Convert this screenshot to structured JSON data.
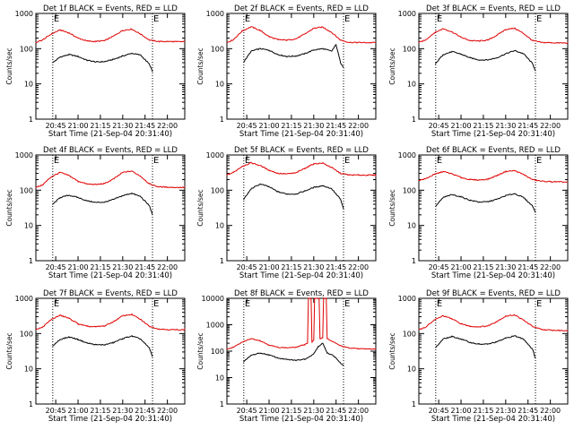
{
  "figure": {
    "background": "#ffffff",
    "axis_color": "#000000",
    "events_color": "#000000",
    "lld_color": "#e00000"
  },
  "chart_data": [
    {
      "type": "line",
      "title": "Det 1f BLACK = Events, RED = LLD",
      "ylabel": "Counts/sec",
      "xlabel": "Start Time (21-Sep-04 20:31:40)",
      "yscale": "log",
      "ylim": [
        1,
        1000
      ],
      "yticks": [
        1,
        10,
        100,
        1000
      ],
      "xlim": [
        20.5278,
        22.1944
      ],
      "xticks": [
        "20:45",
        "21:00",
        "21:15",
        "21:30",
        "21:45",
        "22:00"
      ],
      "markers": [
        {
          "label": "E",
          "x": 20.7167
        },
        {
          "label": "E",
          "x": 21.8333
        }
      ],
      "grid": false,
      "legend": "none",
      "series": [
        {
          "color": "#000000",
          "x": [
            20.7167,
            20.8,
            20.9,
            21.0,
            21.1,
            21.2,
            21.3,
            21.4,
            21.5,
            21.6,
            21.7,
            21.8,
            21.8333
          ],
          "values": [
            40,
            58,
            68,
            60,
            47,
            42,
            43,
            50,
            62,
            74,
            66,
            36,
            22
          ]
        },
        {
          "color": "#e00000",
          "x": [
            20.5278,
            20.6,
            20.7,
            20.8,
            20.9,
            21.0,
            21.1,
            21.2,
            21.3,
            21.4,
            21.5,
            21.6,
            21.7,
            21.8,
            21.9,
            22.0,
            22.1,
            22.1944
          ],
          "values": [
            150,
            175,
            260,
            340,
            280,
            200,
            165,
            160,
            170,
            230,
            330,
            360,
            260,
            175,
            160,
            160,
            158,
            158
          ]
        }
      ]
    },
    {
      "type": "line",
      "title": "Det 2f BLACK = Events, RED = LLD",
      "ylabel": "Counts/sec",
      "xlabel": "Start Time (21-Sep-04 20:31:40)",
      "yscale": "log",
      "ylim": [
        1,
        1000
      ],
      "yticks": [
        1,
        10,
        100,
        1000
      ],
      "xlim": [
        20.5278,
        22.1944
      ],
      "xticks": [
        "20:45",
        "21:00",
        "21:15",
        "21:30",
        "21:45",
        "22:00"
      ],
      "markers": [
        {
          "label": "E",
          "x": 20.7167
        },
        {
          "label": "E",
          "x": 21.8333
        }
      ],
      "grid": false,
      "legend": "none",
      "series": [
        {
          "color": "#000000",
          "x": [
            20.7167,
            20.8,
            20.9,
            21.0,
            21.1,
            21.2,
            21.3,
            21.4,
            21.5,
            21.6,
            21.7,
            21.75,
            21.8,
            21.8333
          ],
          "values": [
            42,
            85,
            100,
            90,
            68,
            60,
            62,
            72,
            92,
            100,
            85,
            130,
            40,
            30
          ]
        },
        {
          "color": "#e00000",
          "x": [
            20.5278,
            20.6,
            20.7,
            20.8,
            20.9,
            21.0,
            21.1,
            21.2,
            21.3,
            21.4,
            21.5,
            21.6,
            21.7,
            21.8,
            21.9,
            22.0,
            22.1,
            22.1944
          ],
          "values": [
            150,
            180,
            320,
            420,
            330,
            220,
            180,
            175,
            190,
            260,
            380,
            410,
            290,
            175,
            150,
            150,
            148,
            150
          ]
        }
      ]
    },
    {
      "type": "line",
      "title": "Det 3f BLACK = Events, RED = LLD",
      "ylabel": "Counts/sec",
      "xlabel": "Start Time (21-Sep-04 20:31:40)",
      "yscale": "log",
      "ylim": [
        1,
        1000
      ],
      "yticks": [
        1,
        10,
        100,
        1000
      ],
      "xlim": [
        20.5278,
        22.1944
      ],
      "xticks": [
        "20:45",
        "21:00",
        "21:15",
        "21:30",
        "21:45",
        "22:00"
      ],
      "markers": [
        {
          "label": "E",
          "x": 20.7167
        },
        {
          "label": "E",
          "x": 21.8333
        }
      ],
      "grid": false,
      "legend": "none",
      "series": [
        {
          "color": "#000000",
          "x": [
            20.7167,
            20.8,
            20.9,
            21.0,
            21.1,
            21.2,
            21.3,
            21.4,
            21.5,
            21.6,
            21.7,
            21.8,
            21.8333
          ],
          "values": [
            38,
            68,
            82,
            70,
            55,
            48,
            48,
            55,
            72,
            88,
            72,
            38,
            24
          ]
        },
        {
          "color": "#e00000",
          "x": [
            20.5278,
            20.6,
            20.7,
            20.8,
            20.9,
            21.0,
            21.1,
            21.2,
            21.3,
            21.4,
            21.5,
            21.6,
            21.7,
            21.8,
            21.9,
            22.0,
            22.1,
            22.1944
          ],
          "values": [
            150,
            175,
            280,
            370,
            300,
            210,
            170,
            165,
            175,
            240,
            350,
            380,
            270,
            170,
            150,
            148,
            145,
            145
          ]
        }
      ]
    },
    {
      "type": "line",
      "title": "Det 4f BLACK = Events, RED = LLD",
      "ylabel": "Counts/sec",
      "xlabel": "Start Time (21-Sep-04 20:31:40)",
      "yscale": "log",
      "ylim": [
        1,
        1000
      ],
      "yticks": [
        1,
        10,
        100,
        1000
      ],
      "xlim": [
        20.5278,
        22.1944
      ],
      "xticks": [
        "20:45",
        "21:00",
        "21:15",
        "21:30",
        "21:45",
        "22:00"
      ],
      "markers": [
        {
          "label": "E",
          "x": 20.7167
        },
        {
          "label": "E",
          "x": 21.8333
        }
      ],
      "grid": false,
      "legend": "none",
      "series": [
        {
          "color": "#000000",
          "x": [
            20.7167,
            20.8,
            20.9,
            21.0,
            21.1,
            21.2,
            21.3,
            21.4,
            21.5,
            21.6,
            21.7,
            21.8,
            21.8333
          ],
          "values": [
            40,
            62,
            72,
            62,
            50,
            45,
            46,
            55,
            70,
            82,
            66,
            36,
            20
          ]
        },
        {
          "color": "#e00000",
          "x": [
            20.5278,
            20.6,
            20.7,
            20.8,
            20.9,
            21.0,
            21.1,
            21.2,
            21.3,
            21.4,
            21.5,
            21.6,
            21.7,
            21.8,
            21.9,
            22.0,
            22.1,
            22.1944
          ],
          "values": [
            120,
            140,
            240,
            320,
            260,
            180,
            150,
            145,
            155,
            210,
            320,
            350,
            250,
            150,
            125,
            122,
            120,
            120
          ]
        }
      ]
    },
    {
      "type": "line",
      "title": "Det 5f BLACK = Events, RED = LLD",
      "ylabel": "Counts/sec",
      "xlabel": "Start Time (21-Sep-04 20:31:40)",
      "yscale": "log",
      "ylim": [
        1,
        1000
      ],
      "yticks": [
        1,
        10,
        100,
        1000
      ],
      "xlim": [
        20.5278,
        22.1944
      ],
      "xticks": [
        "20:45",
        "21:00",
        "21:15",
        "21:30",
        "21:45",
        "22:00"
      ],
      "markers": [
        {
          "label": "E",
          "x": 20.7167
        },
        {
          "label": "E",
          "x": 21.8333
        }
      ],
      "grid": false,
      "legend": "none",
      "series": [
        {
          "color": "#000000",
          "x": [
            20.7167,
            20.8,
            20.9,
            21.0,
            21.1,
            21.2,
            21.3,
            21.4,
            21.5,
            21.6,
            21.7,
            21.8,
            21.8333
          ],
          "values": [
            55,
            110,
            150,
            125,
            90,
            78,
            78,
            95,
            120,
            135,
            110,
            55,
            30
          ]
        },
        {
          "color": "#e00000",
          "x": [
            20.5278,
            20.6,
            20.7,
            20.8,
            20.9,
            21.0,
            21.1,
            21.2,
            21.3,
            21.4,
            21.5,
            21.6,
            21.7,
            21.8,
            21.9,
            22.0,
            22.1,
            22.1944
          ],
          "values": [
            270,
            320,
            480,
            600,
            500,
            370,
            300,
            290,
            310,
            420,
            560,
            590,
            440,
            300,
            270,
            270,
            268,
            268
          ]
        }
      ]
    },
    {
      "type": "line",
      "title": "Det 6f BLACK = Events, RED = LLD",
      "ylabel": "Counts/sec",
      "xlabel": "Start Time (21-Sep-04 20:31:40)",
      "yscale": "log",
      "ylim": [
        1,
        1000
      ],
      "yticks": [
        1,
        10,
        100,
        1000
      ],
      "xlim": [
        20.5278,
        22.1944
      ],
      "xticks": [
        "20:45",
        "21:00",
        "21:15",
        "21:30",
        "21:45",
        "22:00"
      ],
      "markers": [
        {
          "label": "E",
          "x": 20.7167
        },
        {
          "label": "E",
          "x": 21.8333
        }
      ],
      "grid": false,
      "legend": "none",
      "series": [
        {
          "color": "#000000",
          "x": [
            20.7167,
            20.8,
            20.9,
            21.0,
            21.1,
            21.2,
            21.3,
            21.4,
            21.5,
            21.6,
            21.7,
            21.8,
            21.8333
          ],
          "values": [
            35,
            62,
            75,
            65,
            52,
            46,
            47,
            55,
            70,
            80,
            62,
            36,
            24
          ]
        },
        {
          "color": "#e00000",
          "x": [
            20.5278,
            20.6,
            20.7,
            20.8,
            20.9,
            21.0,
            21.1,
            21.2,
            21.3,
            21.4,
            21.5,
            21.6,
            21.7,
            21.8,
            21.9,
            22.0,
            22.1,
            22.1944
          ],
          "values": [
            190,
            210,
            280,
            340,
            290,
            230,
            200,
            195,
            205,
            260,
            340,
            360,
            280,
            200,
            180,
            175,
            172,
            170
          ]
        }
      ]
    },
    {
      "type": "line",
      "title": "Det 7f BLACK = Events, RED = LLD",
      "ylabel": "Counts/sec",
      "xlabel": "Start Time (21-Sep-04 20:31:40)",
      "yscale": "log",
      "ylim": [
        1,
        1000
      ],
      "yticks": [
        1,
        10,
        100,
        1000
      ],
      "xlim": [
        20.5278,
        22.1944
      ],
      "xticks": [
        "20:45",
        "21:00",
        "21:15",
        "21:30",
        "21:45",
        "22:00"
      ],
      "markers": [
        {
          "label": "E",
          "x": 20.7167
        },
        {
          "label": "E",
          "x": 21.8333
        }
      ],
      "grid": false,
      "legend": "none",
      "series": [
        {
          "color": "#000000",
          "x": [
            20.7167,
            20.8,
            20.9,
            21.0,
            21.1,
            21.2,
            21.3,
            21.4,
            21.5,
            21.6,
            21.7,
            21.8,
            21.8333
          ],
          "values": [
            45,
            68,
            80,
            68,
            54,
            48,
            48,
            56,
            72,
            85,
            70,
            38,
            22
          ]
        },
        {
          "color": "#e00000",
          "x": [
            20.5278,
            20.6,
            20.7,
            20.8,
            20.9,
            21.0,
            21.1,
            21.2,
            21.3,
            21.4,
            21.5,
            21.6,
            21.7,
            21.8,
            21.9,
            22.0,
            22.1,
            22.1944
          ],
          "values": [
            130,
            150,
            250,
            330,
            270,
            190,
            160,
            155,
            165,
            220,
            320,
            350,
            250,
            160,
            135,
            130,
            128,
            128
          ]
        }
      ]
    },
    {
      "type": "line",
      "title": "Det 8f BLACK = Events, RED = LLD",
      "ylabel": "Counts/sec",
      "xlabel": "Start Time (21-Sep-04 20:31:40)",
      "yscale": "log",
      "ylim": [
        1,
        10000
      ],
      "yticks": [
        1,
        10,
        100,
        1000,
        10000
      ],
      "xlim": [
        20.5278,
        22.1944
      ],
      "xticks": [
        "20:45",
        "21:00",
        "21:15",
        "21:30",
        "21:45",
        "22:00"
      ],
      "markers": [
        {
          "label": "E",
          "x": 20.7167
        },
        {
          "label": "E",
          "x": 21.8333
        }
      ],
      "grid": false,
      "legend": "none",
      "series": [
        {
          "color": "#000000",
          "x": [
            20.7167,
            20.8,
            20.9,
            21.0,
            21.1,
            21.2,
            21.3,
            21.4,
            21.45,
            21.5,
            21.55,
            21.6,
            21.65,
            21.7,
            21.75,
            21.8,
            21.8333
          ],
          "values": [
            40,
            70,
            85,
            72,
            55,
            48,
            45,
            50,
            62,
            80,
            150,
            200,
            85,
            75,
            55,
            35,
            28
          ]
        },
        {
          "color": "#e00000",
          "x": [
            20.5278,
            20.6,
            20.7,
            20.8,
            20.9,
            21.0,
            21.1,
            21.2,
            21.3,
            21.4,
            21.43,
            21.44,
            21.47,
            21.48,
            21.5,
            21.51,
            21.56,
            21.57,
            21.6,
            21.61,
            21.64,
            21.65,
            21.7,
            21.8,
            21.9,
            22.0,
            22.1,
            22.1944
          ],
          "values": [
            120,
            140,
            220,
            300,
            250,
            170,
            140,
            135,
            140,
            180,
            200,
            10000,
            10000,
            220,
            260,
            10000,
            10000,
            300,
            320,
            10000,
            10000,
            300,
            240,
            160,
            130,
            125,
            122,
            122
          ]
        }
      ]
    },
    {
      "type": "line",
      "title": "Det 9f BLACK = Events, RED = LLD",
      "ylabel": "Counts/sec",
      "xlabel": "Start Time (21-Sep-04 20:31:40)",
      "yscale": "log",
      "ylim": [
        1,
        1000
      ],
      "yticks": [
        1,
        10,
        100,
        1000
      ],
      "xlim": [
        20.5278,
        22.1944
      ],
      "xticks": [
        "20:45",
        "21:00",
        "21:15",
        "21:30",
        "21:45",
        "22:00"
      ],
      "markers": [
        {
          "label": "E",
          "x": 20.7167
        },
        {
          "label": "E",
          "x": 21.8333
        }
      ],
      "grid": false,
      "legend": "none",
      "series": [
        {
          "color": "#000000",
          "x": [
            20.7167,
            20.8,
            20.9,
            21.0,
            21.1,
            21.2,
            21.3,
            21.4,
            21.5,
            21.6,
            21.7,
            21.8,
            21.8333
          ],
          "values": [
            40,
            70,
            82,
            70,
            56,
            50,
            50,
            58,
            74,
            86,
            70,
            36,
            20
          ]
        },
        {
          "color": "#e00000",
          "x": [
            20.5278,
            20.6,
            20.7,
            20.8,
            20.9,
            21.0,
            21.1,
            21.2,
            21.3,
            21.4,
            21.5,
            21.6,
            21.7,
            21.8,
            21.9,
            22.0,
            22.1,
            22.1944
          ],
          "values": [
            130,
            150,
            240,
            320,
            260,
            190,
            160,
            155,
            165,
            220,
            310,
            340,
            240,
            160,
            130,
            125,
            122,
            122
          ]
        }
      ]
    }
  ]
}
